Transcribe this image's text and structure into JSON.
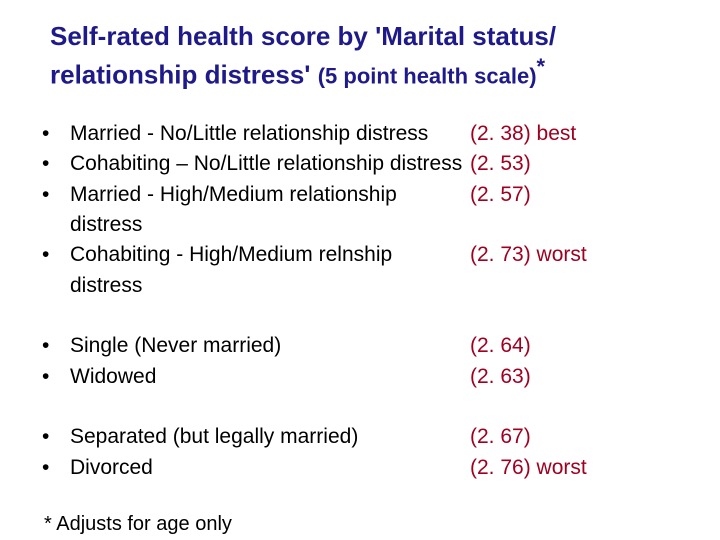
{
  "colors": {
    "title": "#1f1a8a",
    "body": "#000000",
    "highlight": "#a00020"
  },
  "title": {
    "line1": "Self-rated health score by 'Marital status/",
    "line2_a": "relationship distress' ",
    "line2_b": "(5 point health scale)",
    "asterisk": "*"
  },
  "groups": [
    {
      "items": [
        {
          "label": "Married - No/Little relationship distress",
          "value": "(2. 38) ",
          "tag": "best"
        },
        {
          "label": "Cohabiting – No/Little relationship distress",
          "value": "(2. 53)",
          "tag": ""
        },
        {
          "label": "Married - High/Medium relationship distress",
          "value": "(2. 57)",
          "tag": ""
        },
        {
          "label": "Cohabiting - High/Medium relnship distress",
          "value": "(2. 73) ",
          "tag": "worst"
        }
      ]
    },
    {
      "items": [
        {
          "label": "Single (Never married)",
          "value": "(2. 64)",
          "tag": ""
        },
        {
          "label": "Widowed",
          "value": "(2. 63)",
          "tag": ""
        }
      ]
    },
    {
      "items": [
        {
          "label": "Separated (but legally married)",
          "value": "(2. 67)",
          "tag": ""
        },
        {
          "label": "Divorced",
          "value": "(2. 76) ",
          "tag": "worst"
        }
      ]
    }
  ],
  "footnote": "* Adjusts for age only"
}
